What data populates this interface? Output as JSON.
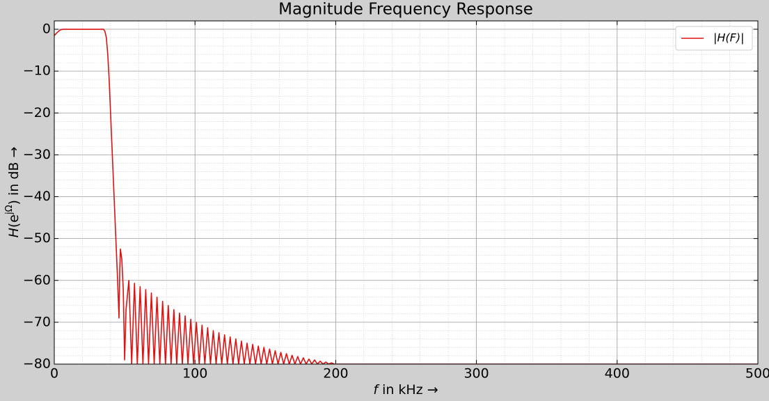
{
  "chart_data": {
    "type": "line",
    "title": "Magnitude Frequency Response",
    "xlabel": [
      "f",
      " in kHz →"
    ],
    "ylabel": [
      "H",
      "(e",
      "jΩ",
      ") in dB →"
    ],
    "x": [
      0,
      2,
      4,
      6,
      10,
      20,
      30,
      35,
      36,
      37,
      38,
      39,
      40,
      41,
      42,
      43,
      44,
      45,
      46,
      46.5,
      47,
      48,
      49,
      50,
      51,
      53,
      55,
      57,
      59,
      61,
      63,
      65,
      67,
      69,
      71,
      73,
      75,
      77,
      79,
      81,
      83,
      85,
      87,
      89,
      91,
      93,
      95,
      97,
      99,
      101,
      103,
      105,
      107,
      109,
      111,
      113,
      115,
      117,
      119,
      121,
      123,
      125,
      127,
      129,
      131,
      133,
      135,
      137,
      139,
      141,
      143,
      145,
      147,
      149,
      151,
      153,
      155,
      157,
      159,
      161,
      163,
      165,
      167,
      169,
      171,
      173,
      175,
      177,
      179,
      181,
      183,
      185,
      187,
      189,
      191,
      193,
      195,
      197,
      199,
      300,
      400,
      500
    ],
    "series": [
      {
        "name": "|H(F)|",
        "color": "#dd1111",
        "values": [
          -1.5,
          -0.8,
          -0.2,
          0,
          0,
          0,
          0,
          0,
          -0.5,
          -2,
          -6,
          -12,
          -20,
          -28,
          -36,
          -44,
          -52,
          -60,
          -69,
          -58,
          -52.5,
          -55,
          -62,
          -79,
          -67,
          -60,
          -80,
          -60.7,
          -80,
          -61.5,
          -80,
          -62.2,
          -80,
          -63,
          -80,
          -64,
          -80,
          -65,
          -80,
          -66,
          -80,
          -67,
          -80,
          -67.8,
          -80,
          -68.5,
          -80,
          -69.3,
          -80,
          -70,
          -80,
          -70.7,
          -80,
          -71.3,
          -80,
          -72,
          -80,
          -72.5,
          -80,
          -73,
          -80,
          -73.5,
          -80,
          -74,
          -80,
          -74.5,
          -80,
          -75,
          -80,
          -75.3,
          -80,
          -75.7,
          -80,
          -76,
          -80,
          -76.4,
          -80,
          -76.8,
          -80,
          -77.2,
          -80,
          -77.5,
          -80,
          -77.9,
          -80,
          -78.2,
          -80,
          -78.5,
          -80,
          -78.8,
          -80,
          -79,
          -80,
          -79.3,
          -80,
          -79.5,
          -80,
          -79.7,
          -80,
          -80,
          -80,
          -80
        ]
      }
    ],
    "xlim": [
      0,
      500
    ],
    "xticks": [
      0,
      100,
      200,
      300,
      400,
      500
    ],
    "ylim": [
      -80,
      2
    ],
    "yticks": [
      0,
      {
        "value": -10,
        "label": "−10"
      },
      {
        "value": -20,
        "label": "−20"
      },
      {
        "value": -30,
        "label": "−30"
      },
      {
        "value": -40,
        "label": "−40"
      },
      {
        "value": -50,
        "label": "−50"
      },
      {
        "value": -60,
        "label": "−60"
      },
      {
        "value": -70,
        "label": "−70"
      },
      {
        "value": -80,
        "label": "−80"
      }
    ],
    "grid": true,
    "legend": "upper right"
  }
}
